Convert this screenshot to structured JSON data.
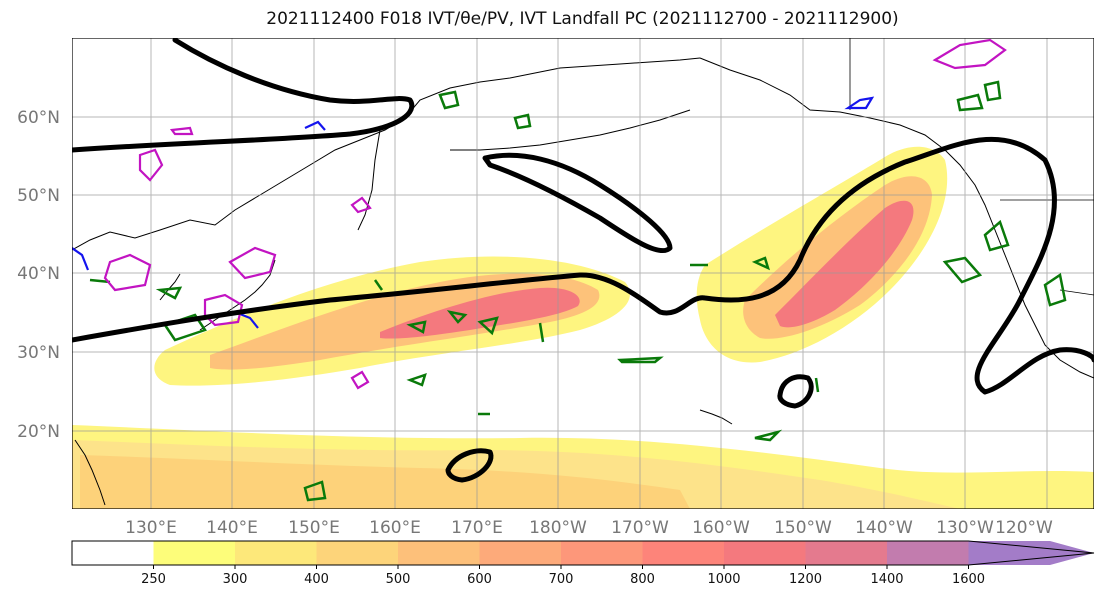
{
  "title": "2021112400 F018 IVT/θe/PV, IVT Landfall PC (2021112700 - 2021112900)",
  "latitude_labels": [
    "60°N",
    "50°N",
    "40°N",
    "30°N",
    "20°N"
  ],
  "longitude_labels": [
    "130°E",
    "140°E",
    "150°E",
    "160°E",
    "170°E",
    "180°W",
    "170°W",
    "160°W",
    "150°W",
    "140°W",
    "130°W",
    "120°W"
  ],
  "colorbar": {
    "ticks": [
      "250",
      "300",
      "400",
      "500",
      "600",
      "700",
      "800",
      "1000",
      "1200",
      "1400",
      "1600"
    ],
    "colors": [
      "#fdfd7a",
      "#fde87a",
      "#fdd47a",
      "#fdc07a",
      "#fdaa7a",
      "#fd977a",
      "#fd847a",
      "#f4797e",
      "#e47a8e",
      "#c27cae",
      "#a37cc8"
    ]
  },
  "colors": {
    "ivt_low": "#fef580",
    "ivt_mid": "#fdc27a",
    "ivt_high": "#f4797e",
    "thick_contour": "#000000",
    "green_contour": "#0a7a0a",
    "blue_contour": "#1414ee",
    "magenta_contour": "#c214c2",
    "grid": "#999999",
    "coast": "#000000"
  }
}
